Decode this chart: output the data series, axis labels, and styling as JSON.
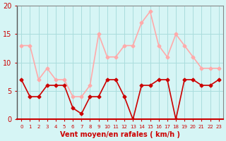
{
  "hours": [
    0,
    1,
    2,
    3,
    4,
    5,
    6,
    7,
    8,
    9,
    10,
    11,
    12,
    13,
    14,
    15,
    16,
    17,
    18,
    19,
    20,
    21,
    22,
    23
  ],
  "wind_avg": [
    7,
    4,
    4,
    6,
    6,
    6,
    2,
    1,
    4,
    4,
    7,
    7,
    4,
    0,
    6,
    6,
    7,
    7,
    0,
    7,
    7,
    6,
    6,
    7
  ],
  "wind_gust": [
    13,
    13,
    7,
    9,
    7,
    7,
    4,
    4,
    6,
    15,
    11,
    11,
    13,
    13,
    17,
    19,
    13,
    11,
    15,
    13,
    11,
    9,
    9,
    9
  ],
  "line_avg_color": "#cc0000",
  "line_gust_color": "#ffaaaa",
  "bg_color": "#d6f5f5",
  "grid_color": "#aadddd",
  "tick_color": "#cc0000",
  "label_color": "#cc0000",
  "xlabel": "Vent moyen/en rafales ( km/h )",
  "ylim": [
    0,
    20
  ],
  "xlim_min": -0.5,
  "xlim_max": 23.5
}
